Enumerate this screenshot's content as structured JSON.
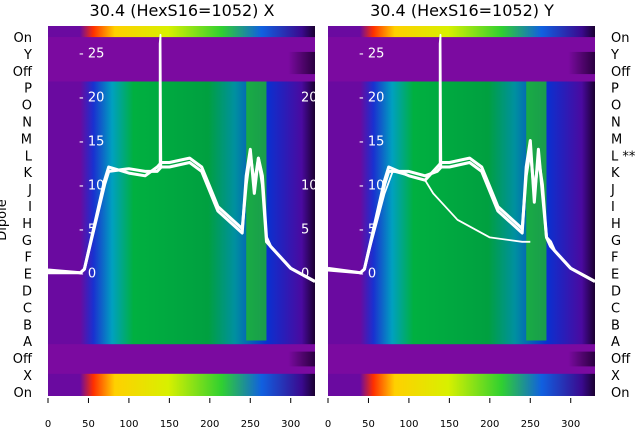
{
  "ylabel": "Dipole",
  "row_labels_left": [
    "On",
    "Y",
    "Off",
    "P",
    "O",
    "N",
    "M",
    "L",
    "K",
    "J",
    "I",
    "H",
    "G",
    "F",
    "E",
    "D",
    "C",
    "B",
    "A",
    "Off",
    "X",
    "On"
  ],
  "row_labels_right": [
    "On",
    "Y",
    "Off",
    "P",
    "O",
    "N",
    "M",
    "L **",
    "K",
    "J",
    "I",
    "H",
    "G",
    "F",
    "E",
    "D",
    "C",
    "B",
    "A",
    "Off",
    "X",
    "On"
  ],
  "colors": {
    "background": "#7b0aa0",
    "heat_low": "#3a40c8",
    "heat_mid": "#00b050",
    "heat_high": "#f0d000",
    "line": "#ffffff"
  },
  "chart_data": [
    {
      "type": "heatmap",
      "title": "30.4 (HexS16=1052) X",
      "xlim": [
        0,
        330
      ],
      "ylim": [
        -14,
        28
      ],
      "x_ticks": [
        0,
        50,
        100,
        150,
        200,
        250,
        300
      ],
      "y_ticks": [
        0,
        5,
        10,
        15,
        20,
        25
      ],
      "right_tick_labels": [
        "20",
        "10",
        "5",
        "0"
      ],
      "bands": [
        {
          "from": 1.0,
          "to": 0.97,
          "level": "high"
        },
        {
          "from": 0.93,
          "to": 0.87,
          "level": "off"
        },
        {
          "from": 0.85,
          "to": 0.14,
          "level": "mid"
        },
        {
          "from": 0.12,
          "to": 0.08,
          "level": "off"
        },
        {
          "from": 0.06,
          "to": 0.0,
          "level": "high"
        }
      ],
      "series": [
        {
          "x": [
            0,
            40,
            45,
            70,
            75,
            100,
            120,
            135,
            140,
            150,
            175,
            190,
            210,
            240,
            245,
            250,
            255,
            260,
            265,
            270,
            275,
            280,
            300,
            330
          ],
          "y": [
            0.3,
            0,
            0.4,
            10,
            11.5,
            11.8,
            11.5,
            11.5,
            12,
            12,
            12.5,
            11.5,
            7,
            4.5,
            11,
            14,
            9,
            13,
            10,
            3.5,
            3,
            2.5,
            0.5,
            -1
          ]
        },
        {
          "x": [
            0,
            40,
            45,
            70,
            75,
            100,
            120,
            135,
            140,
            150,
            175,
            190,
            210,
            240,
            245,
            250,
            255,
            260,
            265,
            270,
            275,
            280,
            300,
            330
          ],
          "y": [
            0,
            0,
            0.4,
            10.5,
            12,
            11.3,
            11,
            12,
            12.5,
            12.5,
            13,
            12,
            7.5,
            5,
            10,
            13.5,
            10,
            13,
            11,
            4,
            3,
            2.5,
            0.5,
            -1
          ]
        },
        {
          "x": [
            138,
            138,
            139,
            140
          ],
          "y": [
            12,
            26,
            27,
            12
          ]
        }
      ]
    },
    {
      "type": "heatmap",
      "title": "30.4 (HexS16=1052) Y",
      "xlim": [
        0,
        330
      ],
      "ylim": [
        -14,
        28
      ],
      "x_ticks": [
        0,
        50,
        100,
        150,
        200,
        250,
        300
      ],
      "y_ticks": [
        0,
        5,
        10,
        15,
        20,
        25
      ],
      "right_tick_labels": [],
      "bands": [
        {
          "from": 1.0,
          "to": 0.97,
          "level": "high"
        },
        {
          "from": 0.93,
          "to": 0.87,
          "level": "off"
        },
        {
          "from": 0.85,
          "to": 0.14,
          "level": "mid"
        },
        {
          "from": 0.12,
          "to": 0.08,
          "level": "off"
        },
        {
          "from": 0.06,
          "to": 0.0,
          "level": "high"
        }
      ],
      "series": [
        {
          "x": [
            0,
            40,
            45,
            70,
            75,
            100,
            120,
            135,
            140,
            150,
            175,
            190,
            210,
            240,
            245,
            250,
            255,
            260,
            265,
            270,
            275,
            280,
            300,
            330
          ],
          "y": [
            0.5,
            0,
            0.4,
            10,
            11.5,
            11.5,
            11,
            11.5,
            12,
            12,
            12.5,
            11.5,
            7,
            4.5,
            12,
            15,
            8,
            14,
            9,
            4,
            3.5,
            2.5,
            0.5,
            -1
          ]
        },
        {
          "x": [
            0,
            40,
            45,
            70,
            75,
            100,
            120,
            135,
            140,
            150,
            175,
            190,
            210,
            240,
            245,
            250,
            255,
            260,
            265,
            270,
            275,
            280,
            300,
            330
          ],
          "y": [
            0.3,
            0,
            0.4,
            10.5,
            12,
            11,
            10.5,
            12,
            12.5,
            12.5,
            13,
            12,
            7.5,
            5,
            11,
            14,
            9,
            13,
            10,
            4,
            3,
            2.5,
            0.5,
            -1
          ]
        },
        {
          "x": [
            0,
            40,
            45,
            70,
            80,
            100,
            120,
            130,
            140,
            160,
            200,
            240,
            250
          ],
          "y": [
            0.5,
            0,
            0.4,
            9,
            11.5,
            11,
            10.5,
            9,
            8,
            6,
            4,
            3.5,
            3.5
          ]
        },
        {
          "x": [
            138,
            138,
            139,
            140
          ],
          "y": [
            12,
            26,
            27,
            12
          ]
        }
      ]
    }
  ]
}
